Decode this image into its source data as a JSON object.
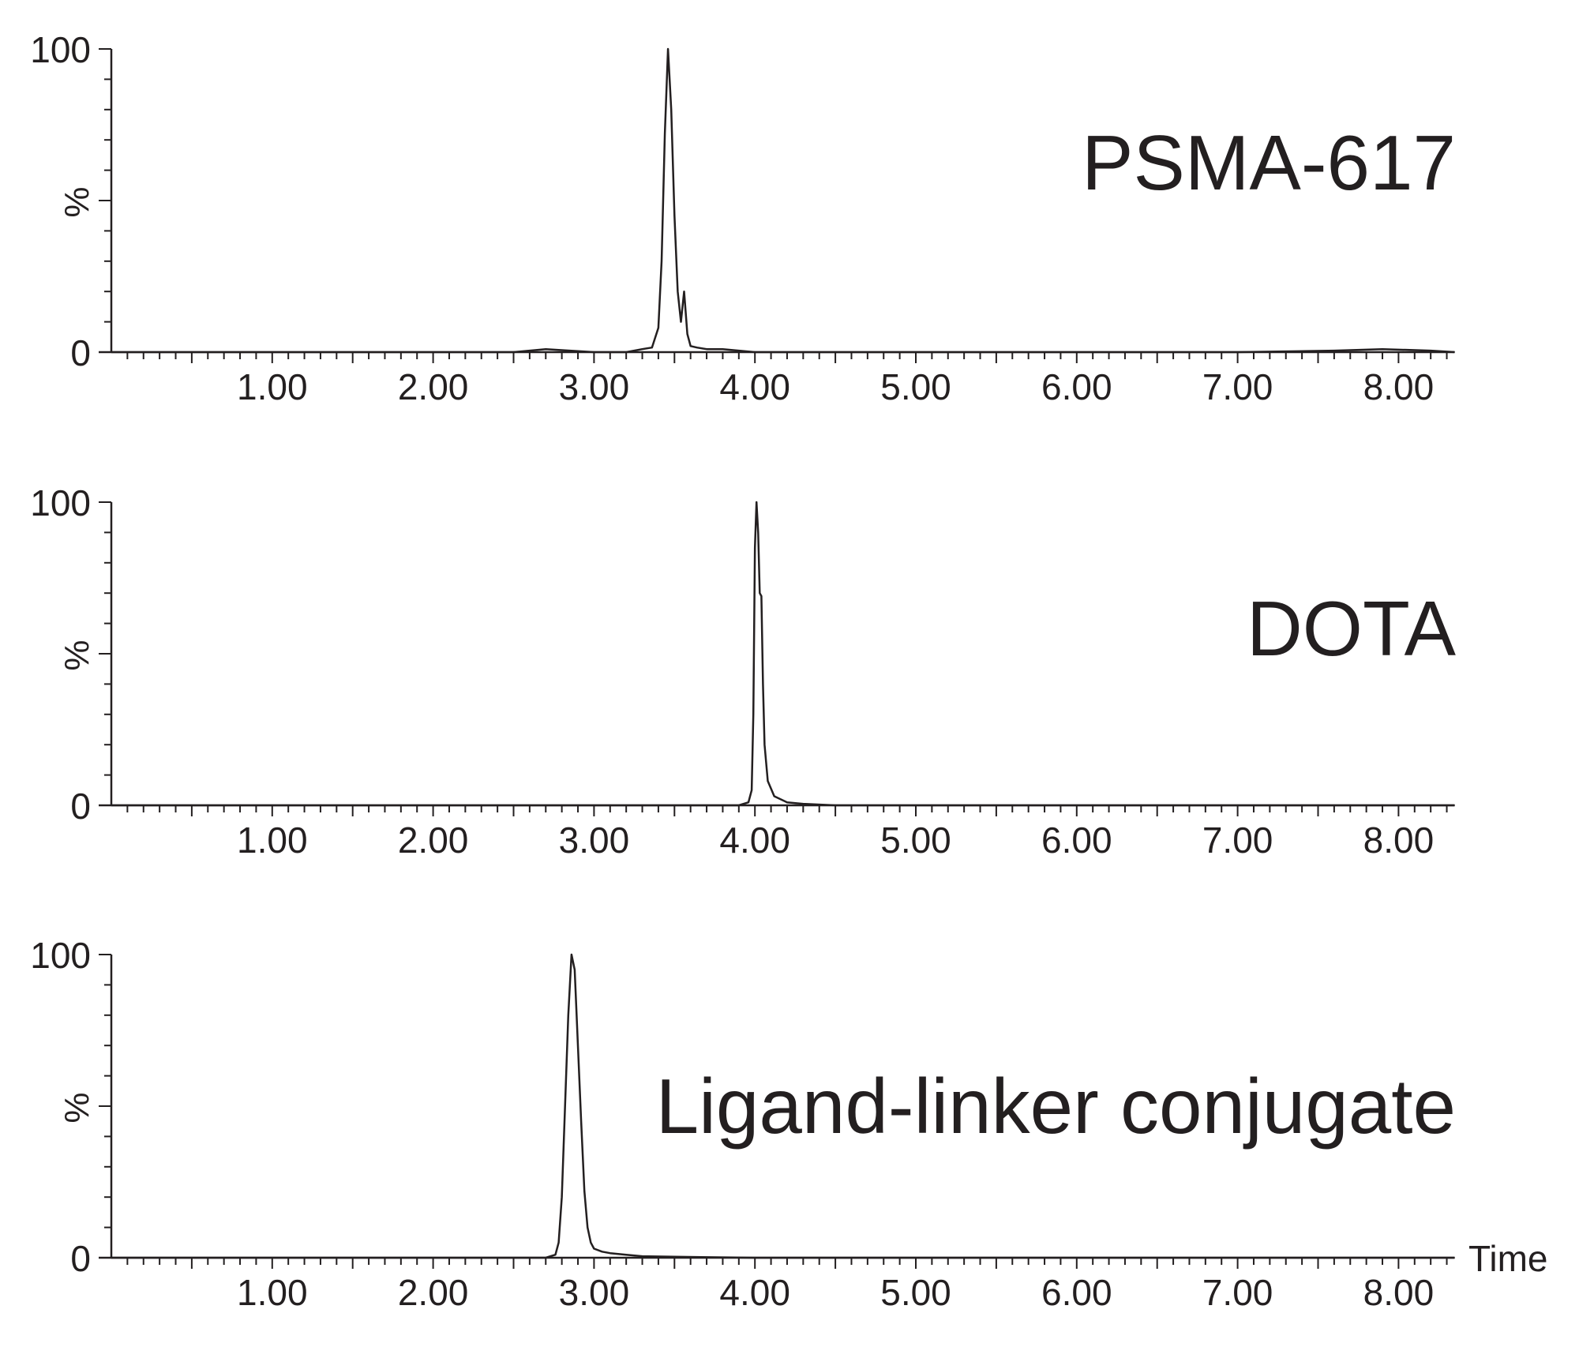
{
  "chart_data": [
    {
      "type": "line",
      "compound_label": "PSMA-617",
      "ylabel": "%",
      "xlabel": "",
      "xlim": [
        0.0,
        8.35
      ],
      "ylim": [
        0,
        100
      ],
      "x_ticks": [
        "1.00",
        "2.00",
        "3.00",
        "4.00",
        "5.00",
        "6.00",
        "7.00",
        "8.00"
      ],
      "y_ticks": [
        "0",
        "100"
      ],
      "grid": false,
      "series": [
        {
          "x": [
            0.0,
            0.5,
            1.0,
            1.5,
            2.0,
            2.5,
            2.7,
            3.0,
            3.2,
            3.3,
            3.36,
            3.4,
            3.42,
            3.44,
            3.46,
            3.48,
            3.5,
            3.52,
            3.54,
            3.56,
            3.58,
            3.6,
            3.64,
            3.7,
            3.8,
            4.0,
            4.5,
            5.0,
            6.0,
            7.0,
            7.6,
            7.9,
            8.2,
            8.35
          ],
          "y": [
            0,
            0,
            0,
            0,
            0,
            0,
            1,
            0,
            0,
            1,
            1.5,
            8,
            30,
            72,
            100,
            80,
            45,
            20,
            10,
            20,
            6,
            2,
            1.5,
            1,
            1,
            0,
            0,
            0,
            0,
            0,
            0.5,
            1,
            0.5,
            0
          ]
        }
      ]
    },
    {
      "type": "line",
      "compound_label": "DOTA",
      "ylabel": "%",
      "xlabel": "",
      "xlim": [
        0.0,
        8.35
      ],
      "ylim": [
        0,
        100
      ],
      "x_ticks": [
        "1.00",
        "2.00",
        "3.00",
        "4.00",
        "5.00",
        "6.00",
        "7.00",
        "8.00"
      ],
      "y_ticks": [
        "0",
        "100"
      ],
      "grid": false,
      "series": [
        {
          "x": [
            0.0,
            1.0,
            2.0,
            3.0,
            3.5,
            3.9,
            3.96,
            3.98,
            3.99,
            4.0,
            4.01,
            4.02,
            4.03,
            4.04,
            4.05,
            4.06,
            4.08,
            4.12,
            4.2,
            4.3,
            4.5,
            5.0,
            6.0,
            7.0,
            8.0,
            8.35
          ],
          "y": [
            0,
            0,
            0,
            0,
            0,
            0,
            1,
            5,
            30,
            85,
            100,
            90,
            70,
            69,
            40,
            20,
            8,
            3,
            1,
            0.5,
            0,
            0,
            0,
            0,
            0,
            0
          ]
        }
      ]
    },
    {
      "type": "line",
      "compound_label": "Ligand-linker conjugate",
      "ylabel": "%",
      "xlabel": "Time",
      "xlim": [
        0.0,
        8.35
      ],
      "ylim": [
        0,
        100
      ],
      "x_ticks": [
        "1.00",
        "2.00",
        "3.00",
        "4.00",
        "5.00",
        "6.00",
        "7.00",
        "8.00"
      ],
      "y_ticks": [
        "0",
        "100"
      ],
      "grid": false,
      "series": [
        {
          "x": [
            0.0,
            1.0,
            2.0,
            2.7,
            2.76,
            2.78,
            2.8,
            2.82,
            2.84,
            2.86,
            2.88,
            2.9,
            2.92,
            2.94,
            2.96,
            2.98,
            3.0,
            3.05,
            3.1,
            3.2,
            3.3,
            3.5,
            4.0,
            5.0,
            6.0,
            7.0,
            8.0,
            8.35
          ],
          "y": [
            0,
            0,
            0,
            0,
            1,
            5,
            20,
            50,
            80,
            100,
            95,
            70,
            45,
            22,
            10,
            5,
            3,
            2,
            1.5,
            1,
            0.5,
            0.3,
            0,
            0,
            0,
            0,
            0,
            0
          ]
        }
      ]
    }
  ]
}
